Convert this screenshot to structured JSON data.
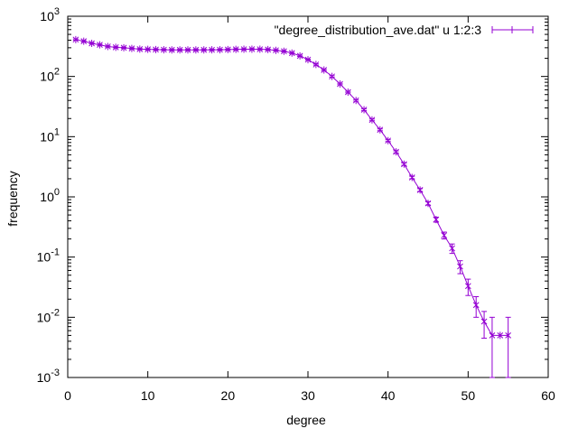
{
  "chart_data": {
    "type": "line",
    "title": "",
    "xlabel": "degree",
    "ylabel": "frequency",
    "xlim": [
      0,
      60
    ],
    "ylim": [
      0.001,
      1000
    ],
    "y_scale": "log",
    "grid": false,
    "legend_position": "top-right",
    "x_ticks": [
      "0",
      "10",
      "20",
      "30",
      "40",
      "50",
      "60"
    ],
    "y_ticks": [
      {
        "base": "10",
        "exp": "-3"
      },
      {
        "base": "10",
        "exp": "-2"
      },
      {
        "base": "10",
        "exp": "-1"
      },
      {
        "base": "10",
        "exp": "0"
      },
      {
        "base": "10",
        "exp": "1"
      },
      {
        "base": "10",
        "exp": "2"
      },
      {
        "base": "10",
        "exp": "3"
      }
    ],
    "series": [
      {
        "name": "\"degree_distribution_ave.dat\" u 1:2:3",
        "color": "#9400d3",
        "style": "linespoints with y-error bars",
        "x": [
          1,
          2,
          3,
          4,
          5,
          6,
          7,
          8,
          9,
          10,
          11,
          12,
          13,
          14,
          15,
          16,
          17,
          18,
          19,
          20,
          21,
          22,
          23,
          24,
          25,
          26,
          27,
          28,
          29,
          30,
          31,
          32,
          33,
          34,
          35,
          36,
          37,
          38,
          39,
          40,
          41,
          42,
          43,
          44,
          45,
          46,
          47,
          48,
          49,
          50,
          51,
          52,
          53,
          54,
          55
        ],
        "y": [
          410,
          385,
          355,
          335,
          315,
          305,
          300,
          292,
          285,
          282,
          280,
          278,
          276,
          276,
          276,
          276,
          276,
          277,
          278,
          280,
          282,
          283,
          284,
          283,
          280,
          272,
          262,
          245,
          220,
          190,
          158,
          128,
          100,
          75,
          55,
          40,
          28,
          19,
          13,
          8.6,
          5.6,
          3.5,
          2.1,
          1.3,
          0.78,
          0.42,
          0.23,
          0.14,
          0.07,
          0.033,
          0.016,
          0.0085,
          0.005,
          0.005,
          0.005
        ],
        "y_error": [
          10,
          9,
          8,
          7,
          7,
          6,
          6,
          6,
          6,
          6,
          6,
          6,
          6,
          6,
          6,
          6,
          6,
          6,
          6,
          6,
          6,
          6,
          6,
          6,
          6,
          6,
          5,
          5,
          5,
          4,
          4,
          3,
          3,
          2,
          1.5,
          1.2,
          0.9,
          0.6,
          0.45,
          0.3,
          0.22,
          0.15,
          0.1,
          0.07,
          0.05,
          0.04,
          0.03,
          0.025,
          0.017,
          0.01,
          0.006,
          0.004,
          0.005,
          0,
          0.005
        ]
      }
    ]
  }
}
